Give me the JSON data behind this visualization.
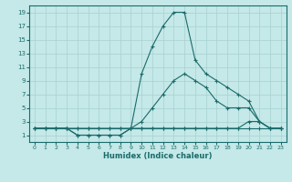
{
  "xlabel": "Humidex (Indice chaleur)",
  "xlim": [
    -0.5,
    23.5
  ],
  "ylim": [
    0,
    20
  ],
  "xticks": [
    0,
    1,
    2,
    3,
    4,
    5,
    6,
    7,
    8,
    9,
    10,
    11,
    12,
    13,
    14,
    15,
    16,
    17,
    18,
    19,
    20,
    21,
    22,
    23
  ],
  "yticks": [
    1,
    3,
    5,
    7,
    9,
    11,
    13,
    15,
    17,
    19
  ],
  "bg_color": "#c5e8e8",
  "line_color": "#1a6b6b",
  "grid_color": "#a8d0d0",
  "series1_x": [
    0,
    1,
    2,
    3,
    4,
    5,
    6,
    7,
    8,
    9,
    10,
    11,
    12,
    13,
    14,
    15,
    16,
    17,
    18,
    19,
    20,
    21,
    22,
    23
  ],
  "series1_y": [
    2,
    2,
    2,
    2,
    2,
    2,
    2,
    2,
    2,
    2,
    2,
    2,
    2,
    2,
    2,
    2,
    2,
    2,
    2,
    2,
    2,
    2,
    2,
    2
  ],
  "series2_x": [
    0,
    1,
    2,
    3,
    4,
    5,
    6,
    7,
    8,
    9,
    10,
    11,
    12,
    13,
    14,
    15,
    16,
    17,
    18,
    19,
    20,
    21,
    22,
    23
  ],
  "series2_y": [
    2,
    2,
    2,
    2,
    2,
    2,
    2,
    2,
    2,
    2,
    2,
    2,
    2,
    2,
    2,
    2,
    2,
    2,
    2,
    2,
    3,
    3,
    2,
    2
  ],
  "series3_x": [
    0,
    1,
    2,
    3,
    4,
    5,
    6,
    7,
    8,
    9,
    10,
    11,
    12,
    13,
    14,
    15,
    16,
    17,
    18,
    19,
    20,
    21,
    22,
    23
  ],
  "series3_y": [
    2,
    2,
    2,
    2,
    1,
    1,
    1,
    1,
    1,
    2,
    3,
    5,
    7,
    9,
    10,
    9,
    8,
    6,
    5,
    5,
    5,
    3,
    2,
    2
  ],
  "series4_x": [
    0,
    1,
    2,
    3,
    4,
    5,
    6,
    7,
    8,
    9,
    10,
    11,
    12,
    13,
    14,
    15,
    16,
    17,
    18,
    19,
    20,
    21,
    22,
    23
  ],
  "series4_y": [
    2,
    2,
    2,
    2,
    1,
    1,
    1,
    1,
    1,
    2,
    10,
    14,
    17,
    19,
    19,
    12,
    10,
    9,
    8,
    7,
    6,
    3,
    2,
    2
  ],
  "tick_labelsize": 5,
  "xlabel_fontsize": 6
}
